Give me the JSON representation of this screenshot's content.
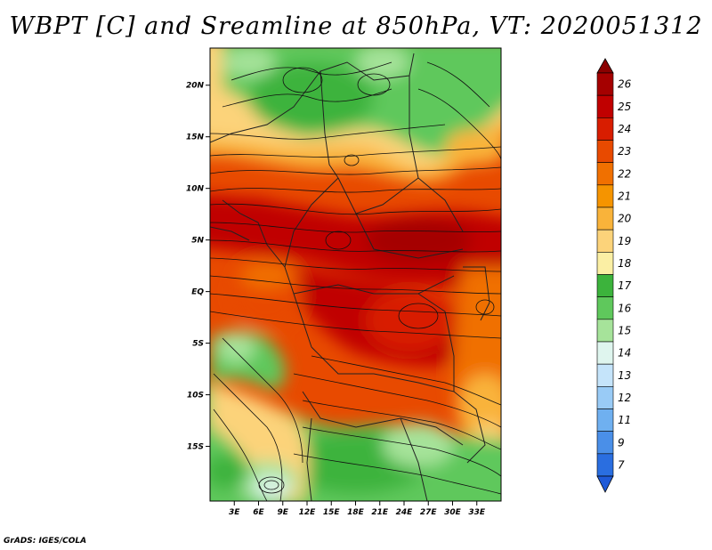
{
  "title": "WBPT [C] and Sreamline at 850hPa, VT: 2020051312",
  "credit": "GrADS: IGES/COLA",
  "map": {
    "lon_range_deg": [
      0,
      36
    ],
    "lat_range_deg": [
      -20.3,
      23.6
    ],
    "x_ticks": [
      "3E",
      "6E",
      "9E",
      "12E",
      "15E",
      "18E",
      "21E",
      "24E",
      "27E",
      "30E",
      "33E"
    ],
    "y_ticks": [
      "20N",
      "15N",
      "10N",
      "5N",
      "EQ",
      "5S",
      "10S",
      "15S"
    ],
    "field": "wet-bulb potential temperature",
    "overlay": "streamlines"
  },
  "colorbar": {
    "levels": [
      "26",
      "25",
      "24",
      "23",
      "22",
      "21",
      "20",
      "19",
      "18",
      "17",
      "16",
      "15",
      "14",
      "13",
      "12",
      "11",
      "9",
      "7"
    ],
    "colors": [
      "#a50000",
      "#c00000",
      "#d81d00",
      "#e84a00",
      "#f07000",
      "#f59400",
      "#f9b33a",
      "#fcd37a",
      "#fbefa4",
      "#3cb33c",
      "#5fc85c",
      "#a6e39a",
      "#dff5ee",
      "#c5e4fa",
      "#99cbf6",
      "#6fb0f0",
      "#4a8fe8",
      "#2a6ee0"
    ],
    "top_arrow_color": "#8b0000",
    "bottom_arrow_color": "#1f5ad8"
  }
}
